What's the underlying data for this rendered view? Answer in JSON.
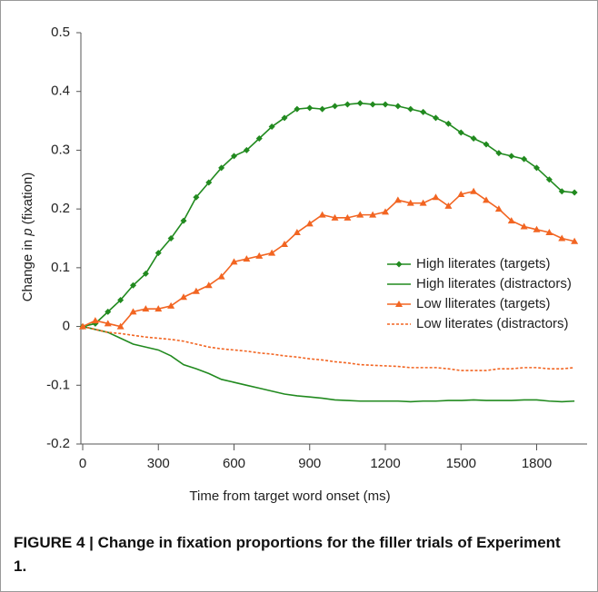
{
  "chart_data": {
    "type": "line",
    "ylabel": [
      "Change in",
      "p",
      "(fixation)"
    ],
    "xlabel": "Time from target word onset (ms)",
    "caption": "FIGURE 4 | Change in fixation proportions for the filler trials of Experiment 1.",
    "x": [
      0,
      50,
      100,
      150,
      200,
      250,
      300,
      350,
      400,
      450,
      500,
      550,
      600,
      650,
      700,
      750,
      800,
      850,
      900,
      950,
      1000,
      1050,
      1100,
      1150,
      1200,
      1250,
      1300,
      1350,
      1400,
      1450,
      1500,
      1550,
      1600,
      1650,
      1700,
      1750,
      1800,
      1850,
      1900,
      1950
    ],
    "xlim": [
      0,
      2000
    ],
    "xticks": [
      0,
      300,
      600,
      900,
      1200,
      1500,
      1800
    ],
    "ylim": [
      -0.2,
      0.5
    ],
    "yticks": [
      -0.2,
      -0.1,
      0,
      0.1,
      0.2,
      0.3,
      0.4,
      0.5
    ],
    "legend": "right",
    "series": [
      {
        "name": "High literates (targets)",
        "color": "#218a1f",
        "marker": "diamond",
        "dash": false,
        "values": [
          0,
          0.005,
          0.025,
          0.045,
          0.07,
          0.09,
          0.125,
          0.15,
          0.18,
          0.22,
          0.245,
          0.27,
          0.29,
          0.3,
          0.32,
          0.34,
          0.355,
          0.37,
          0.372,
          0.37,
          0.375,
          0.378,
          0.38,
          0.378,
          0.378,
          0.375,
          0.37,
          0.365,
          0.355,
          0.345,
          0.33,
          0.32,
          0.31,
          0.295,
          0.29,
          0.285,
          0.27,
          0.25,
          0.23,
          0.228
        ]
      },
      {
        "name": "High literates (distractors)",
        "color": "#218a1f",
        "marker": "none",
        "dash": false,
        "values": [
          0,
          -0.005,
          -0.01,
          -0.02,
          -0.03,
          -0.035,
          -0.04,
          -0.05,
          -0.065,
          -0.072,
          -0.08,
          -0.09,
          -0.095,
          -0.1,
          -0.105,
          -0.11,
          -0.115,
          -0.118,
          -0.12,
          -0.122,
          -0.125,
          -0.126,
          -0.127,
          -0.127,
          -0.127,
          -0.127,
          -0.128,
          -0.127,
          -0.127,
          -0.126,
          -0.126,
          -0.125,
          -0.126,
          -0.126,
          -0.126,
          -0.125,
          -0.125,
          -0.127,
          -0.128,
          -0.127
        ]
      },
      {
        "name": "Low lliterates (targets)",
        "color": "#f26522",
        "marker": "triangle",
        "dash": false,
        "values": [
          0,
          0.01,
          0.005,
          0,
          0.025,
          0.03,
          0.03,
          0.035,
          0.05,
          0.06,
          0.07,
          0.085,
          0.11,
          0.115,
          0.12,
          0.125,
          0.14,
          0.16,
          0.175,
          0.19,
          0.185,
          0.185,
          0.19,
          0.19,
          0.195,
          0.215,
          0.21,
          0.21,
          0.22,
          0.205,
          0.225,
          0.23,
          0.215,
          0.2,
          0.18,
          0.17,
          0.165,
          0.16,
          0.15,
          0.145
        ]
      },
      {
        "name": "Low literates (distractors)",
        "color": "#f26522",
        "marker": "none",
        "dash": true,
        "values": [
          0,
          -0.005,
          -0.01,
          -0.012,
          -0.015,
          -0.018,
          -0.02,
          -0.022,
          -0.025,
          -0.03,
          -0.035,
          -0.038,
          -0.04,
          -0.042,
          -0.045,
          -0.047,
          -0.05,
          -0.052,
          -0.055,
          -0.057,
          -0.06,
          -0.062,
          -0.065,
          -0.066,
          -0.067,
          -0.068,
          -0.07,
          -0.07,
          -0.07,
          -0.072,
          -0.075,
          -0.075,
          -0.075,
          -0.072,
          -0.072,
          -0.07,
          -0.07,
          -0.072,
          -0.072,
          -0.07
        ]
      }
    ]
  }
}
